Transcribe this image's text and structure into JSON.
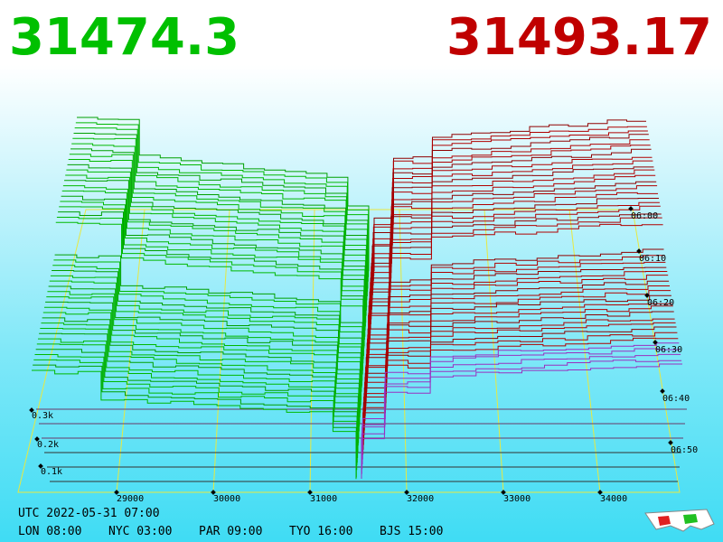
{
  "header": {
    "bid": "31474.3",
    "ask": "31493.17"
  },
  "axes": {
    "price_labels": [
      "29000",
      "30000",
      "31000",
      "32000",
      "33000",
      "34000"
    ],
    "depth_labels": [
      "0.3k",
      "0.2k",
      "0.1k"
    ],
    "time_labels": [
      "06:00",
      "06:10",
      "06:20",
      "06:30",
      "06:40",
      "06:50"
    ]
  },
  "footer": {
    "utc": "UTC 2022-05-31 07:00",
    "cities": [
      "LON 08:00",
      "NYC 03:00",
      "PAR 09:00",
      "TYO 16:00",
      "BJS 15:00"
    ]
  }
}
